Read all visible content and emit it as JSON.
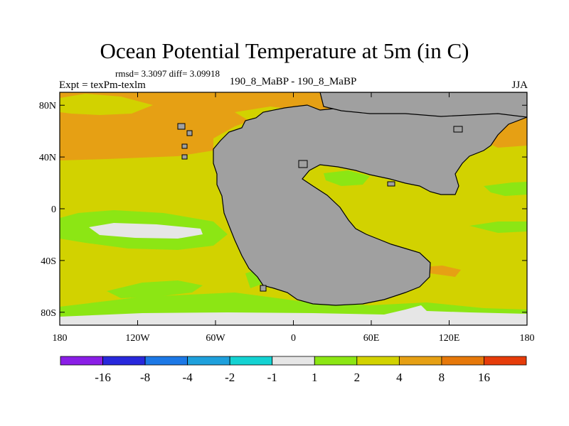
{
  "title": "Ocean Potential Temperature at 5m (in C)",
  "stats": "rmsd= 3.3097 diff= 3.09918",
  "expt": "Expt = texPm-texlm",
  "cases": "190_8_MaBP - 190_8_MaBP",
  "season": "JJA",
  "chart_data": {
    "type": "heatmap",
    "title": "Ocean Potential Temperature at 5m (in C)",
    "units": "C",
    "projection": "cylindrical equidistant",
    "x_range": [
      -180,
      180
    ],
    "y_range": [
      -90,
      90
    ],
    "x_ticks": [
      -180,
      -120,
      -60,
      0,
      60,
      120,
      180
    ],
    "x_tick_labels": [
      "180",
      "120W",
      "60W",
      "0",
      "60E",
      "120E",
      "180"
    ],
    "y_ticks": [
      80,
      40,
      0,
      -40,
      -80
    ],
    "y_tick_labels": [
      "80N",
      "40N",
      "0",
      "40S",
      "80S"
    ],
    "land_color": "#a0a0a0",
    "colorbar": {
      "colors": [
        "#8a1ee6",
        "#2828dc",
        "#1c78e6",
        "#1ea0dc",
        "#14d2d2",
        "#e6e6e6",
        "#8ce614",
        "#d2d200",
        "#e6a014",
        "#e6780a",
        "#e63c0a"
      ],
      "labels": [
        "-16",
        "-8",
        "-4",
        "-2",
        "-1",
        "1",
        "2",
        "4",
        "8",
        "16"
      ]
    }
  }
}
